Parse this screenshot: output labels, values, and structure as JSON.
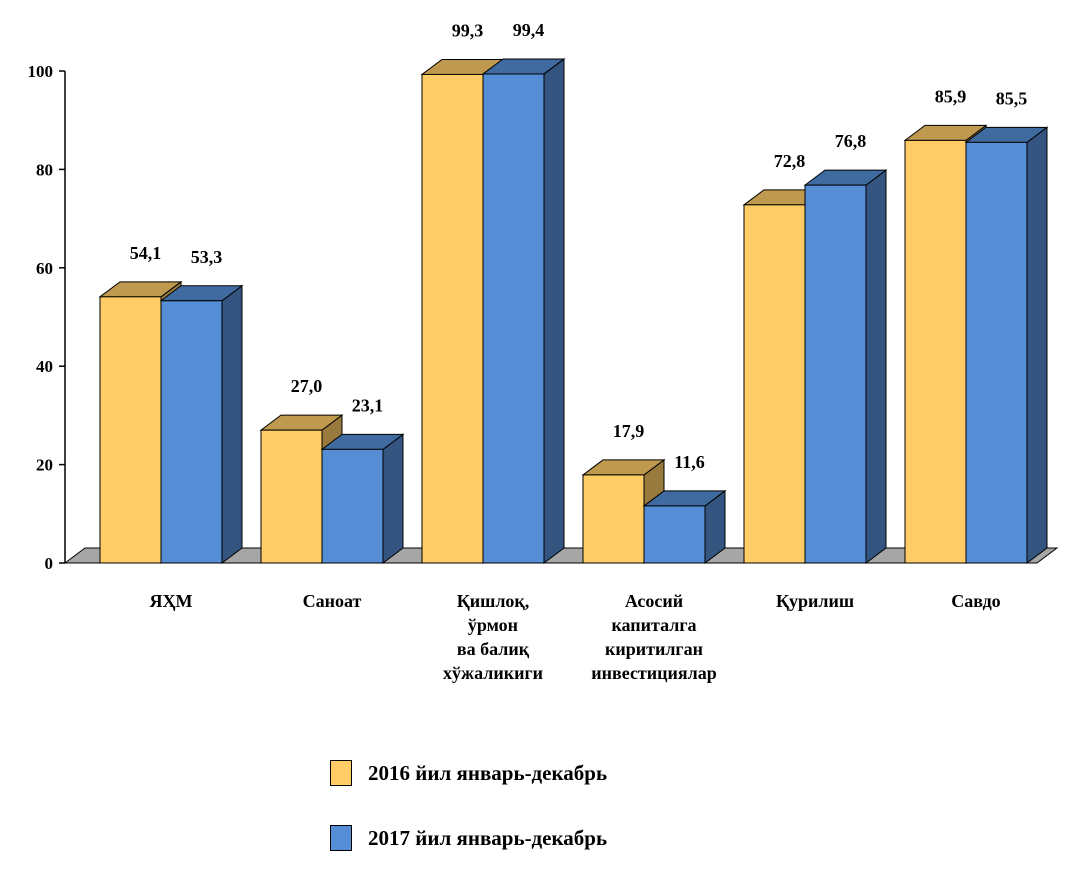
{
  "chart_data": {
    "type": "bar",
    "categories": [
      [
        "ЯҲМ"
      ],
      [
        "Саноат"
      ],
      [
        "Қишлоқ,",
        "ўрмон",
        "ва балиқ",
        "хўжаликиги"
      ],
      [
        "Асосий",
        "капиталга",
        "киритилган",
        "инвестициялар"
      ],
      [
        "Қурилиш"
      ],
      [
        "Савдо"
      ]
    ],
    "series": [
      {
        "name": "2016 йил январь-декабрь",
        "values": [
          54.1,
          27.0,
          99.3,
          17.9,
          72.8,
          85.9
        ],
        "labels": [
          "54,1",
          "27,0",
          "99,3",
          "17,9",
          "72,8",
          "85,9"
        ],
        "color": "#FFCC66"
      },
      {
        "name": "2017 йил январь-декабрь",
        "values": [
          53.3,
          23.1,
          99.4,
          11.6,
          76.8,
          85.5
        ],
        "labels": [
          "53,3",
          "23,1",
          "99,4",
          "11,6",
          "76,8",
          "85,5"
        ],
        "color": "#558ED5"
      }
    ],
    "yticks": [
      "0",
      "20",
      "40",
      "60",
      "80",
      "100"
    ],
    "ylim": [
      0,
      100
    ],
    "floor_color": "#A6A6A6",
    "legend_position": "bottom"
  }
}
